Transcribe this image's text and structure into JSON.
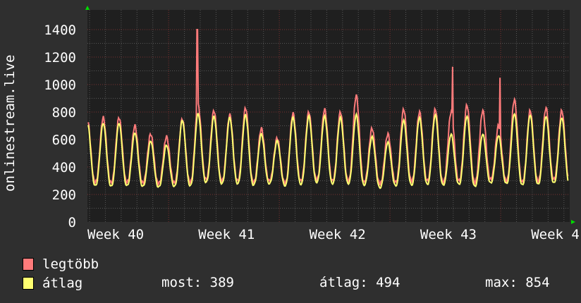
{
  "chart_data": {
    "type": "line",
    "ylabel": "onlinestream.live",
    "ylim": [
      0,
      1500
    ],
    "yticks": [
      "0",
      "200",
      "400",
      "600",
      "800",
      "1000",
      "1200",
      "1400"
    ],
    "ytick_values": [
      0,
      200,
      400,
      600,
      800,
      1000,
      1200,
      1400
    ],
    "xticks": [
      "Week 40",
      "Week 41",
      "Week 42",
      "Week 43",
      "Week 4"
    ],
    "days_shown": 30.5,
    "grid": true,
    "colors": {
      "max": "#ff7b7b",
      "avg": "#ffff70",
      "grid_minor": "#555555",
      "grid_major": "#7a3030",
      "axis_arrow": "#00dd00"
    },
    "series": [
      {
        "name": "legtöbb",
        "daily_peaks": [
          740,
          760,
          760,
          700,
          640,
          620,
          750,
          850,
          810,
          780,
          830,
          680,
          610,
          790,
          800,
          820,
          800,
          920,
          680,
          640,
          820,
          800,
          820,
          800,
          850,
          810,
          700,
          890,
          810,
          830,
          810
        ],
        "daily_troughs": [
          290,
          285,
          290,
          285,
          280,
          285,
          290,
          310,
          300,
          300,
          290,
          300,
          285,
          300,
          310,
          300,
          300,
          290,
          280,
          290,
          300,
          300,
          290,
          300,
          290,
          310,
          300,
          290,
          300,
          310,
          300
        ],
        "spikes": [
          {
            "day": 6.95,
            "value": 1400
          },
          {
            "day": 23.1,
            "value": 1130
          },
          {
            "day": 26.1,
            "value": 1050
          }
        ]
      },
      {
        "name": "átlag",
        "daily_peaks": [
          720,
          720,
          720,
          650,
          590,
          560,
          740,
          790,
          770,
          760,
          780,
          640,
          590,
          760,
          770,
          770,
          760,
          780,
          620,
          580,
          740,
          760,
          780,
          640,
          770,
          640,
          630,
          790,
          780,
          770,
          760
        ],
        "daily_troughs": [
          265,
          260,
          265,
          260,
          255,
          260,
          265,
          290,
          280,
          280,
          270,
          280,
          265,
          275,
          290,
          280,
          280,
          270,
          250,
          265,
          270,
          275,
          270,
          275,
          260,
          285,
          280,
          270,
          275,
          285,
          270
        ],
        "spikes": []
      }
    ],
    "stats": {
      "most_label": "most:",
      "most": "389",
      "atlag_label": "átlag:",
      "atlag": "494",
      "max_label": "max:",
      "max": "854"
    }
  }
}
